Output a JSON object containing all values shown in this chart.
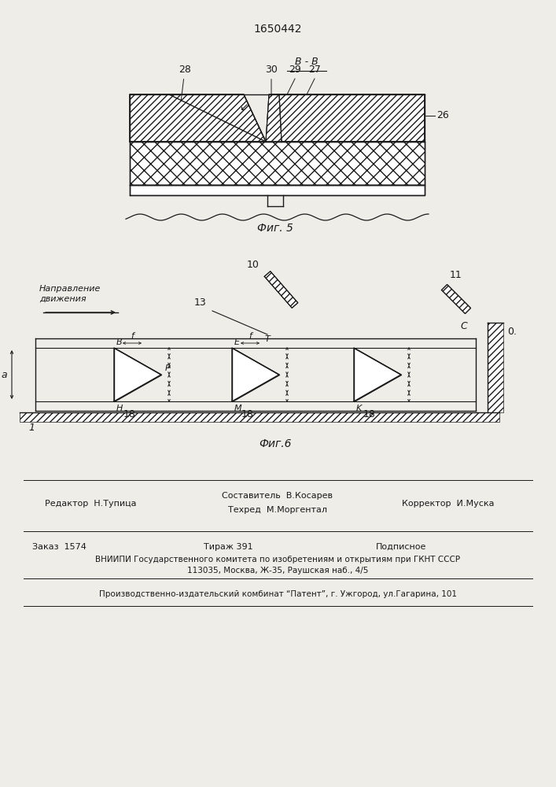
{
  "patent_number": "1650442",
  "fig5_caption": "Фиг. 5",
  "fig6_caption": "Фиг.6",
  "footer_line1_left": "Редактор  Н.Тупица",
  "footer_line1_center": "Составитель  В.Косарев",
  "footer_line1_center2": "Техред  М.Моргентал",
  "footer_line1_right": "Корректор  И.Муска",
  "footer_line2_left": "Заказ  1574",
  "footer_line2_center": "Тираж 391",
  "footer_line2_right": "Подписное",
  "footer_line3": "ВНИИПИ Государственного комитета по изобретениям и открытиям при ГКНТ СССР",
  "footer_line4": "113035, Москва, Ж-35, Раушская наб., 4/5",
  "footer_line5": "Производственно-издательский комбинат “Патент”, г. Ужгород, ул.Гагарина, 101",
  "direction_text1": "Направление",
  "direction_text2": "движения",
  "bg_color": "#f0eeea",
  "line_color": "#1a1a1a"
}
